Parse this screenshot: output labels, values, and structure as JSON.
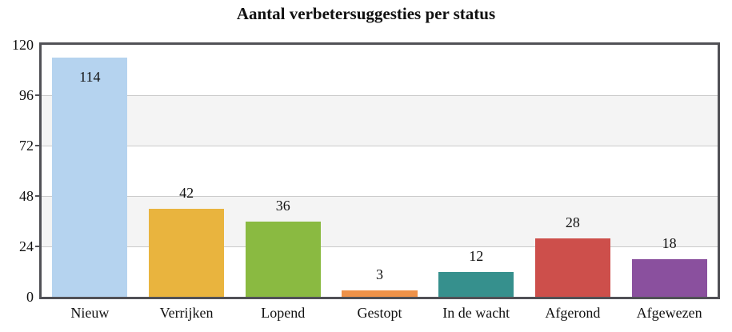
{
  "chart_data": {
    "type": "bar",
    "title": "Aantal verbetersuggesties per status",
    "categories": [
      "Nieuw",
      "Verrijken",
      "Lopend",
      "Gestopt",
      "In de wacht",
      "Afgerond",
      "Afgewezen"
    ],
    "values": [
      114,
      42,
      36,
      3,
      12,
      28,
      18
    ],
    "bar_colors": [
      "#b5d3ef",
      "#e9b43e",
      "#8aba41",
      "#ef9249",
      "#36908d",
      "#cd4f4b",
      "#8a509e"
    ],
    "value_label_inside": [
      true,
      false,
      false,
      false,
      false,
      false,
      false
    ],
    "xlabel": "",
    "ylabel": "",
    "ylim": [
      0,
      120
    ],
    "yticks": [
      0,
      24,
      48,
      72,
      96,
      120
    ],
    "band_ranges": [
      [
        24,
        48
      ],
      [
        72,
        96
      ]
    ],
    "grid": true,
    "legend": "none"
  },
  "style": {
    "band_color": "#f4f4f4",
    "gridline_color": "#cbcbcb",
    "plot_border_color": "#515156",
    "text_color": "#111111",
    "background": "#ffffff"
  }
}
